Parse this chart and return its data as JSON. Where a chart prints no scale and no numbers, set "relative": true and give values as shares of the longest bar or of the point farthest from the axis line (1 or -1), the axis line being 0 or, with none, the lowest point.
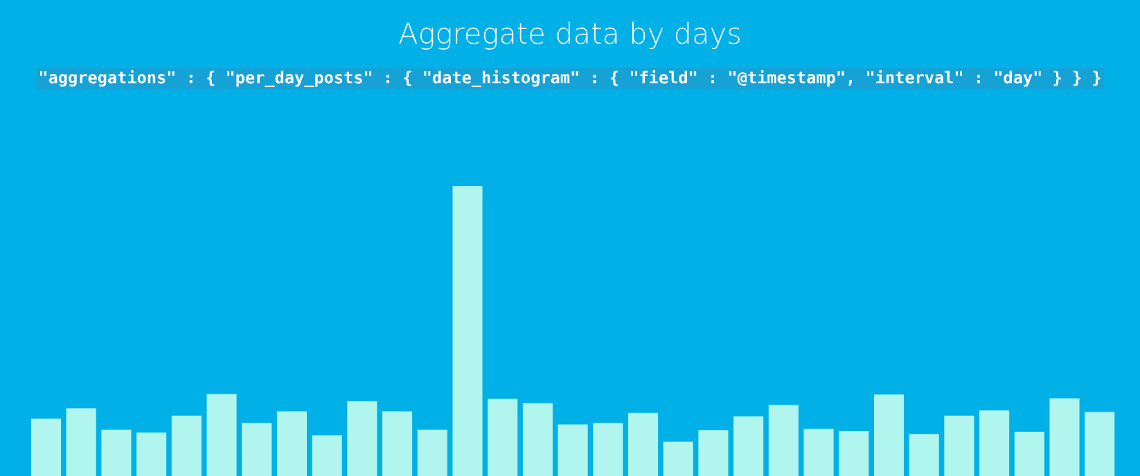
{
  "chart_data": {
    "type": "bar",
    "title": "Aggregate data by days",
    "subtitle": "\"aggregations\" : { \"per_day_posts\" : { \"date_histogram\" : { \"field\" : \"@timestamp\", \"interval\" : \"day\" } } }",
    "categories": [
      null,
      null,
      null,
      null,
      null,
      null,
      null,
      null,
      null,
      null,
      null,
      null,
      null,
      null,
      null,
      null,
      null,
      null,
      null,
      null,
      null,
      null,
      null,
      null,
      null,
      null,
      null,
      null,
      null,
      null,
      null
    ],
    "values": [
      0.198,
      0.233,
      0.16,
      0.15,
      0.208,
      0.283,
      0.183,
      0.223,
      0.14,
      0.258,
      0.223,
      0.16,
      1,
      0.266,
      0.251,
      0.178,
      0.183,
      0.218,
      0.118,
      0.158,
      0.206,
      0.246,
      0.163,
      0.155,
      0.281,
      0.145,
      0.208,
      0.226,
      0.153,
      0.268,
      0.221
    ],
    "color": "#b0f5ee",
    "relative": true
  }
}
